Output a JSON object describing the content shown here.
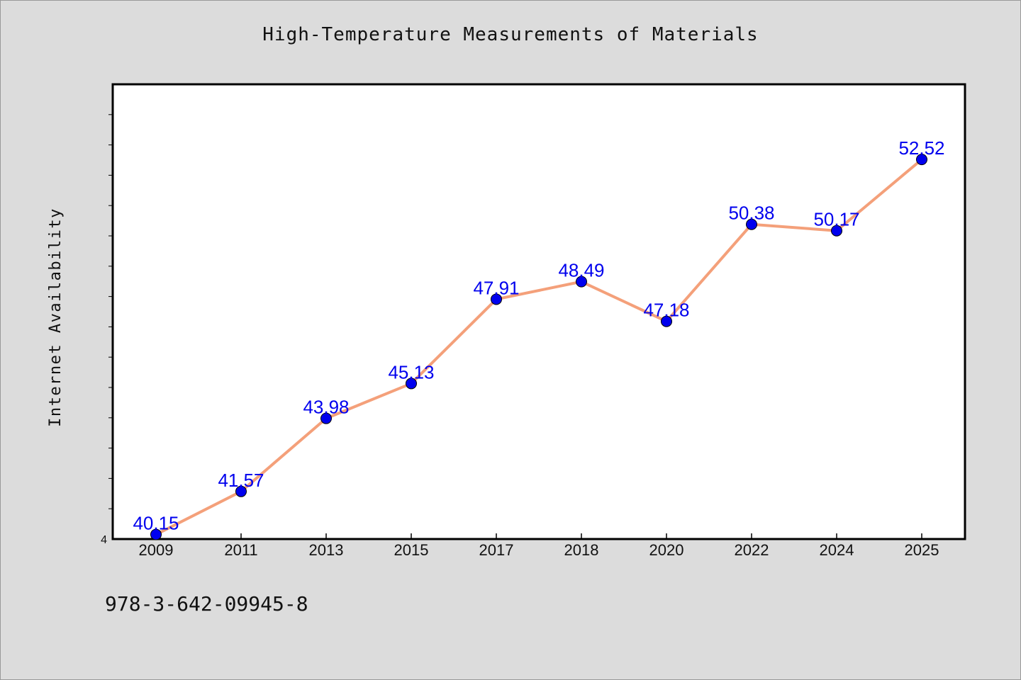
{
  "chart_data": {
    "type": "line",
    "title": "High-Temperature Measurements of Materials",
    "xlabel": "",
    "ylabel": "Internet Availability",
    "categories": [
      "2009",
      "2011",
      "2013",
      "2015",
      "2017",
      "2018",
      "2020",
      "2022",
      "2024",
      "2025"
    ],
    "series": [
      {
        "values": [
          40.15,
          41.57,
          43.98,
          45.13,
          47.91,
          48.49,
          47.18,
          50.38,
          50.17,
          52.52
        ],
        "data_labels": [
          "40.15",
          "41.57",
          "43.98",
          "45.13",
          "47.91",
          "48.49",
          "47.18",
          "50.38",
          "50.17",
          "52.52"
        ]
      }
    ],
    "ylim": [
      40,
      55
    ],
    "y_tick_labels": [
      "4"
    ],
    "grid": false,
    "line_color": "#f4a07a",
    "marker_color": "#0000ee",
    "label_color": "#0000ee"
  },
  "footer": {
    "isbn": "978-3-642-09945-8"
  }
}
